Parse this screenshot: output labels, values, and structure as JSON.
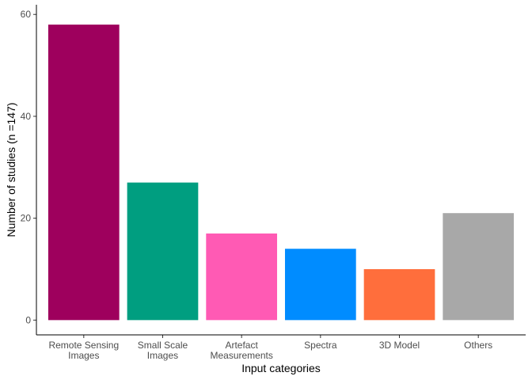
{
  "chart_data": {
    "type": "bar",
    "title": "",
    "xlabel": "Input categories",
    "ylabel": "Number of studies (n =147)",
    "categories": [
      [
        "Remote Sensing",
        "Images"
      ],
      [
        "Small Scale",
        "Images"
      ],
      [
        "Artefact",
        "Measurements"
      ],
      [
        "Spectra"
      ],
      [
        "3D Model"
      ],
      [
        "Others"
      ]
    ],
    "values": [
      58,
      27,
      17,
      14,
      10,
      21
    ],
    "colors": [
      "#9E005D",
      "#009E80",
      "#FF5AB4",
      "#008CFF",
      "#FF6E3C",
      "#A8A8A8"
    ],
    "y_ticks": [
      0,
      20,
      40,
      60
    ],
    "ylim": [
      -2.9,
      61.9
    ],
    "grid": false,
    "legend": "none"
  }
}
